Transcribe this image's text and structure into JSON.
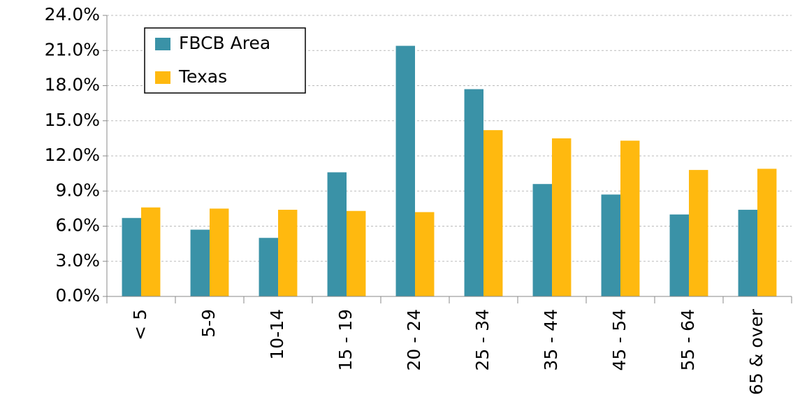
{
  "chart_data": {
    "type": "bar",
    "categories": [
      "< 5",
      "5-9",
      "10-14",
      "15 - 19",
      "20 - 24",
      "25 - 34",
      "35 - 44",
      "45 - 54",
      "55 - 64",
      "65 & over"
    ],
    "series": [
      {
        "name": "FBCB Area",
        "color": "#3a92a7",
        "values": [
          6.7,
          5.7,
          5.0,
          10.6,
          21.4,
          17.7,
          9.6,
          8.7,
          7.0,
          7.4
        ]
      },
      {
        "name": "Texas",
        "color": "#ffb90f",
        "values": [
          7.6,
          7.5,
          7.4,
          7.3,
          7.2,
          14.2,
          13.5,
          13.3,
          10.8,
          10.9
        ]
      }
    ],
    "ylim": [
      0,
      24
    ],
    "yticks": [
      {
        "value": 0,
        "label": "0.0%"
      },
      {
        "value": 3,
        "label": "3.0%"
      },
      {
        "value": 6,
        "label": "6.0%"
      },
      {
        "value": 9,
        "label": "9.0%"
      },
      {
        "value": 12,
        "label": "12.0%"
      },
      {
        "value": 15,
        "label": "15.0%"
      },
      {
        "value": 18,
        "label": "18.0%"
      },
      {
        "value": 21,
        "label": "21.0%"
      },
      {
        "value": 24,
        "label": "24.0%"
      }
    ],
    "grid": true,
    "legend": "upper-left"
  }
}
